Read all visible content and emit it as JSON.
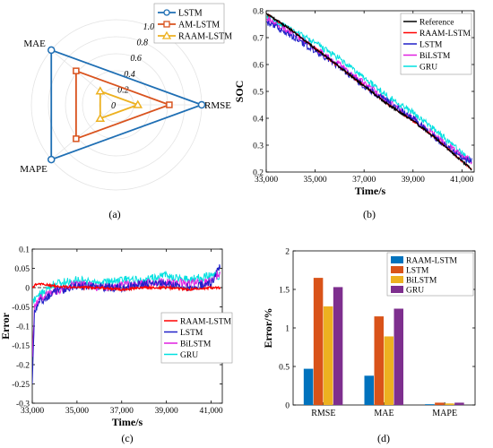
{
  "chart_data": [
    {
      "id": "a",
      "type": "radar",
      "panel_label": "(a)",
      "axes": [
        "RMSE",
        "MAE",
        "MAPE"
      ],
      "radial_ticks": [
        "0",
        "0.2",
        "0.4",
        "0.6",
        "0.8",
        "1.0"
      ],
      "rlim": [
        0,
        1
      ],
      "series": [
        {
          "name": "LSTM",
          "values": [
            1.0,
            1.0,
            1.0
          ],
          "color": "#1f6fb4",
          "marker": "circle"
        },
        {
          "name": "AM-LSTM",
          "values": [
            0.62,
            0.62,
            0.62
          ],
          "color": "#d9531e",
          "marker": "square"
        },
        {
          "name": "RAAM-LSTM",
          "values": [
            0.25,
            0.25,
            0.25
          ],
          "color": "#edb120",
          "marker": "triangle"
        }
      ],
      "legend": "top-right"
    },
    {
      "id": "b",
      "type": "line",
      "panel_label": "(b)",
      "xlabel": "Time/s",
      "ylabel": "SOC",
      "xlim": [
        33000,
        41500
      ],
      "ylim": [
        0.2,
        0.8
      ],
      "xticks": [
        "33,000",
        "35,000",
        "37,000",
        "39,000",
        "41,000"
      ],
      "xtick_values": [
        33000,
        35000,
        37000,
        39000,
        41000
      ],
      "yticks": [
        "0.2",
        "0.3",
        "0.4",
        "0.5",
        "0.6",
        "0.7",
        "0.8"
      ],
      "ytick_values": [
        0.2,
        0.3,
        0.4,
        0.5,
        0.6,
        0.7,
        0.8
      ],
      "series": [
        {
          "name": "Reference",
          "color": "#000000",
          "x": [
            33000,
            34000,
            35000,
            36000,
            37000,
            38000,
            39000,
            40000,
            41000,
            41400
          ],
          "y": [
            0.79,
            0.73,
            0.66,
            0.59,
            0.52,
            0.45,
            0.39,
            0.32,
            0.24,
            0.21
          ]
        },
        {
          "name": "RAAM-LSTM",
          "color": "#ff0000",
          "x": [
            33000,
            34000,
            35000,
            36000,
            37000,
            38000,
            39000,
            40000,
            41000,
            41400
          ],
          "y": [
            0.79,
            0.73,
            0.66,
            0.59,
            0.52,
            0.45,
            0.39,
            0.32,
            0.24,
            0.21
          ]
        },
        {
          "name": "LSTM",
          "color": "#2020c8",
          "x": [
            33000,
            34000,
            35000,
            36000,
            37000,
            38000,
            39000,
            40000,
            41000,
            41400
          ],
          "y": [
            0.76,
            0.71,
            0.65,
            0.59,
            0.52,
            0.46,
            0.4,
            0.32,
            0.25,
            0.24
          ]
        },
        {
          "name": "BiLSTM",
          "color": "#e020e0",
          "x": [
            33000,
            34000,
            35000,
            36000,
            37000,
            38000,
            39000,
            40000,
            41000,
            41400
          ],
          "y": [
            0.77,
            0.72,
            0.66,
            0.6,
            0.53,
            0.46,
            0.4,
            0.33,
            0.26,
            0.24
          ]
        },
        {
          "name": "GRU",
          "color": "#00e0e0",
          "x": [
            33000,
            34000,
            35000,
            36000,
            37000,
            38000,
            39000,
            40000,
            41000,
            41400
          ],
          "y": [
            0.78,
            0.73,
            0.68,
            0.62,
            0.55,
            0.48,
            0.42,
            0.35,
            0.27,
            0.24
          ]
        }
      ],
      "legend": "top-right"
    },
    {
      "id": "c",
      "type": "line",
      "panel_label": "(c)",
      "xlabel": "Time/s",
      "ylabel": "Error",
      "xlim": [
        33000,
        41500
      ],
      "ylim": [
        -0.3,
        0.1
      ],
      "xticks": [
        "33,000",
        "35,000",
        "37,000",
        "39,000",
        "41,000"
      ],
      "xtick_values": [
        33000,
        35000,
        37000,
        39000,
        41000
      ],
      "yticks": [
        "-0.3",
        "-0.25",
        "-0.2",
        "-0.15",
        "-0.1",
        "-0.05",
        "0",
        "0.05",
        "0.1"
      ],
      "ytick_values": [
        -0.3,
        -0.25,
        -0.2,
        -0.15,
        -0.1,
        -0.05,
        0,
        0.05,
        0.1
      ],
      "zero_line": true,
      "series": [
        {
          "name": "RAAM-LSTM",
          "color": "#ff0000",
          "x": [
            33000,
            33200,
            34000,
            35000,
            36000,
            37000,
            38000,
            39000,
            40000,
            41000,
            41400
          ],
          "y": [
            0.0,
            0.01,
            0.005,
            0.0,
            0.0,
            -0.005,
            0.0,
            0.0,
            -0.005,
            0.0,
            0.0
          ]
        },
        {
          "name": "LSTM",
          "color": "#2020c8",
          "x": [
            33000,
            33100,
            33300,
            34000,
            35000,
            36000,
            37000,
            38000,
            39000,
            40000,
            41000,
            41400
          ],
          "y": [
            -0.25,
            -0.06,
            -0.04,
            -0.01,
            0.005,
            0.0,
            0.0,
            0.01,
            0.01,
            0.0,
            0.01,
            0.06
          ]
        },
        {
          "name": "BiLSTM",
          "color": "#e020e0",
          "x": [
            33000,
            33100,
            33300,
            34000,
            35000,
            36000,
            37000,
            38000,
            39000,
            40000,
            41000,
            41400
          ],
          "y": [
            -0.18,
            -0.05,
            -0.03,
            -0.01,
            0.01,
            0.0,
            0.005,
            0.01,
            0.015,
            0.01,
            0.015,
            0.04
          ]
        },
        {
          "name": "GRU",
          "color": "#00e0e0",
          "x": [
            33000,
            33100,
            33300,
            34000,
            35000,
            36000,
            37000,
            38000,
            39000,
            40000,
            41000,
            41400
          ],
          "y": [
            -0.03,
            -0.03,
            -0.02,
            0.01,
            0.02,
            0.01,
            0.02,
            0.02,
            0.03,
            0.02,
            0.03,
            0.03
          ]
        }
      ],
      "legend": "bottom-right"
    },
    {
      "id": "d",
      "type": "bar",
      "panel_label": "(d)",
      "xlabel": "",
      "ylabel": "Error/%",
      "ylim": [
        0,
        2
      ],
      "yticks": [
        "0",
        "0.5",
        "1",
        "1.5",
        "2"
      ],
      "ytick_values": [
        0,
        0.5,
        1,
        1.5,
        2
      ],
      "categories": [
        "RMSE",
        "MAE",
        "MAPE"
      ],
      "series": [
        {
          "name": "RAAM-LSTM",
          "values": [
            0.47,
            0.38,
            0.01
          ],
          "color": "#0072bd"
        },
        {
          "name": "LSTM",
          "values": [
            1.65,
            1.15,
            0.03
          ],
          "color": "#d95319"
        },
        {
          "name": "BiLSTM",
          "values": [
            1.28,
            0.89,
            0.02
          ],
          "color": "#edb120"
        },
        {
          "name": "GRU",
          "values": [
            1.53,
            1.25,
            0.03
          ],
          "color": "#7e2f8e"
        }
      ],
      "legend": "top-left"
    }
  ]
}
